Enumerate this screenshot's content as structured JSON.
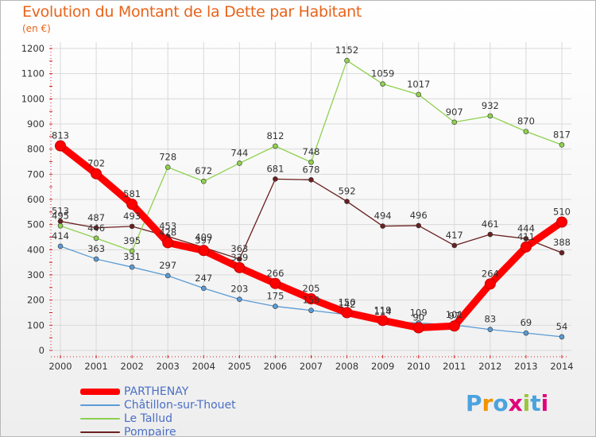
{
  "chart_data": {
    "type": "line",
    "title": "Evolution du Montant de la Dette par Habitant",
    "subtitle": "(en €)",
    "x": [
      "2000",
      "2001",
      "2002",
      "2003",
      "2004",
      "2005",
      "2006",
      "2007",
      "2008",
      "2009",
      "2010",
      "2011",
      "2012",
      "2013",
      "2014"
    ],
    "ylim": [
      0,
      1200
    ],
    "yticks": [
      0,
      100,
      200,
      300,
      400,
      500,
      600,
      700,
      800,
      900,
      1000,
      1100,
      1200
    ],
    "grid": true,
    "legend_position": "bottom-left",
    "series": [
      {
        "name": "Pompaire",
        "color": "#6b1f1f",
        "values": [
          513,
          487,
          493,
          453,
          409,
          363,
          681,
          678,
          592,
          494,
          496,
          417,
          461,
          444,
          388
        ],
        "labels": [
          "513",
          "487",
          "493",
          "453",
          "409",
          "363",
          "681",
          "678",
          "592",
          "494",
          "496",
          "417",
          "461",
          "444",
          "388"
        ]
      },
      {
        "name": "Le Tallud",
        "color": "#8fd14f",
        "values": [
          495,
          446,
          395,
          728,
          672,
          744,
          812,
          748,
          1152,
          1059,
          1017,
          907,
          932,
          870,
          817
        ],
        "labels": [
          "495",
          "446",
          "395",
          "728",
          "672",
          "744",
          "812",
          "748",
          "1152",
          "1059",
          "1017",
          "907",
          "932",
          "870",
          "817"
        ]
      },
      {
        "name": "Châtillon-sur-Thouet",
        "color": "#5b9bd5",
        "values": [
          414,
          363,
          331,
          297,
          247,
          203,
          175,
          159,
          142,
          114,
          109,
          101,
          83,
          69,
          54
        ],
        "labels": [
          "414",
          "363",
          "331",
          "297",
          "247",
          "203",
          "175",
          "159",
          "142",
          "114",
          "109",
          "101",
          "83",
          "69",
          "54"
        ]
      },
      {
        "name": "PARTHENAY",
        "color": "#ff0000",
        "values": [
          813,
          702,
          581,
          428,
          397,
          329,
          266,
          205,
          150,
          119,
          90,
          97,
          264,
          411,
          510
        ],
        "labels": [
          "813",
          "702",
          "581",
          "428",
          "397",
          "329",
          "266",
          "205",
          "150",
          "119",
          "90",
          "97",
          "264",
          "411",
          "510"
        ]
      }
    ]
  },
  "legend": [
    {
      "name": "PARTHENAY",
      "color": "#ff0000"
    },
    {
      "name": "Châtillon-sur-Thouet",
      "color": "#5b9bd5"
    },
    {
      "name": "Le Tallud",
      "color": "#8fd14f"
    },
    {
      "name": "Pompaire",
      "color": "#6b1f1f"
    }
  ],
  "logo": {
    "text": "Proxiti",
    "colors": [
      "#4aa3df",
      "#f29400",
      "#4aa3df",
      "#e2007a",
      "#9bc53d",
      "#4aa3df",
      "#e2007a"
    ]
  }
}
